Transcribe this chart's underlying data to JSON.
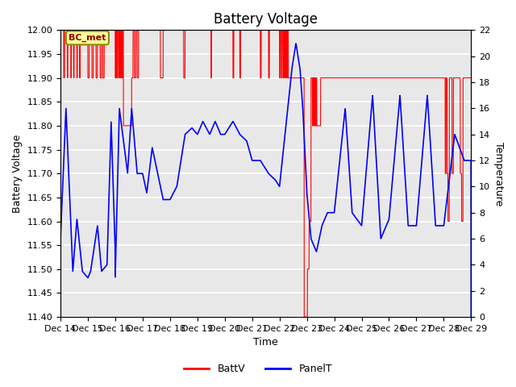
{
  "title": "Battery Voltage",
  "xlabel": "Time",
  "ylabel_left": "Battery Voltage",
  "ylabel_right": "Temperature",
  "ylim_left": [
    11.4,
    12.0
  ],
  "ylim_right": [
    0,
    22
  ],
  "yticks_left": [
    11.4,
    11.45,
    11.5,
    11.55,
    11.6,
    11.65,
    11.7,
    11.75,
    11.8,
    11.85,
    11.9,
    11.95,
    12.0
  ],
  "yticks_right": [
    0,
    2,
    4,
    6,
    8,
    10,
    12,
    14,
    16,
    18,
    20,
    22
  ],
  "xtick_labels": [
    "Dec 14",
    "Dec 15",
    "Dec 16",
    "Dec 17",
    "Dec 18",
    "Dec 19",
    "Dec 20",
    "Dec 21",
    "Dec 22",
    "Dec 23",
    "Dec 24",
    "Dec 25",
    "Dec 26",
    "Dec 27",
    "Dec 28",
    "Dec 29"
  ],
  "annotation_text": "BC_met",
  "batt_color": "#FF0000",
  "panel_color": "#0000FF",
  "background_color": "#E8E8E8",
  "grid_color": "#FFFFFF",
  "title_fontsize": 12,
  "label_fontsize": 9,
  "tick_fontsize": 8
}
